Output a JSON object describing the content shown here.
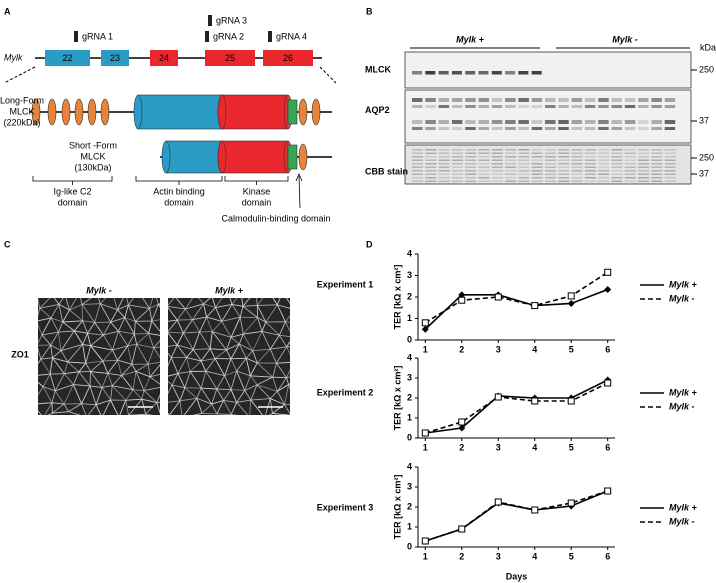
{
  "panel_a": {
    "label": "A",
    "gene": "Mylk",
    "exons": [
      "22",
      "23",
      "24",
      "25",
      "26"
    ],
    "grnas": [
      "gRNA 1",
      "gRNA 2",
      "gRNA 3",
      "gRNA 4"
    ],
    "long_form": [
      "Long-Form",
      "MLCK",
      "(220kDa)"
    ],
    "short_form": [
      "Short -Form",
      "MLCK",
      "(130kDa)"
    ],
    "domains": [
      [
        "Ig-like C2",
        "domain"
      ],
      [
        "Actin binding",
        "domain"
      ],
      [
        "Kinase",
        "domain"
      ]
    ],
    "calmodulin": "Calmodulin-binding domain"
  },
  "panel_b": {
    "label": "B",
    "groups": [
      "Mylk +",
      "Mylk -"
    ],
    "unit": "kDa",
    "rows": [
      {
        "name": "MLCK",
        "markers": [
          "250"
        ]
      },
      {
        "name": "AQP2",
        "markers": [
          "37"
        ]
      },
      {
        "name": "CBB stain",
        "markers": [
          "250",
          "37"
        ]
      }
    ]
  },
  "panel_c": {
    "label": "C",
    "columns": [
      "Mylk -",
      "Mylk +"
    ],
    "row": "ZO1"
  },
  "panel_d": {
    "label": "D"
  },
  "chart_data": [
    {
      "type": "line",
      "title": "Experiment 1",
      "y_label": "TER [kΩ x cm²]",
      "x": [
        1,
        2,
        3,
        4,
        5,
        6
      ],
      "xlim": [
        0.8,
        6.2
      ],
      "xticks": [
        1,
        2,
        3,
        4,
        5,
        6
      ],
      "ylim": [
        0,
        4
      ],
      "yticks": [
        0,
        1,
        2,
        3,
        4
      ],
      "series": [
        {
          "name": "Mylk +",
          "color": "#000000",
          "dash": false,
          "marker": "diamond",
          "values": [
            0.5,
            2.1,
            2.1,
            1.6,
            1.7,
            2.35
          ]
        },
        {
          "name": "Mylk -",
          "color": "#000000",
          "dash": true,
          "marker": "square",
          "values": [
            0.8,
            1.85,
            2.0,
            1.6,
            2.05,
            3.15
          ]
        }
      ]
    },
    {
      "type": "line",
      "title": "Experiment 2",
      "y_label": "TER [kΩ x cm²]",
      "x": [
        1,
        2,
        3,
        4,
        5,
        6
      ],
      "xlim": [
        0.8,
        6.2
      ],
      "xticks": [
        1,
        2,
        3,
        4,
        5,
        6
      ],
      "ylim": [
        0,
        4
      ],
      "yticks": [
        0,
        1,
        2,
        3,
        4
      ],
      "series": [
        {
          "name": "Mylk +",
          "color": "#000000",
          "dash": false,
          "marker": "diamond",
          "values": [
            0.25,
            0.5,
            2.1,
            2.0,
            2.0,
            2.9
          ]
        },
        {
          "name": "Mylk -",
          "color": "#000000",
          "dash": true,
          "marker": "square",
          "values": [
            0.25,
            0.8,
            2.05,
            1.85,
            1.85,
            2.75
          ]
        }
      ]
    },
    {
      "type": "line",
      "title": "Experiment 3",
      "y_label": "TER [kΩ x cm²]",
      "x_label": "Days",
      "x": [
        1,
        2,
        3,
        4,
        5,
        6
      ],
      "xlim": [
        0.8,
        6.2
      ],
      "xticks": [
        1,
        2,
        3,
        4,
        5,
        6
      ],
      "ylim": [
        0,
        4
      ],
      "yticks": [
        0,
        1,
        2,
        3,
        4
      ],
      "series": [
        {
          "name": "Mylk +",
          "color": "#000000",
          "dash": false,
          "marker": "diamond",
          "values": [
            0.3,
            0.9,
            2.2,
            1.85,
            2.05,
            2.8
          ]
        },
        {
          "name": "Mylk -",
          "color": "#000000",
          "dash": true,
          "marker": "square",
          "values": [
            0.3,
            0.9,
            2.25,
            1.85,
            2.2,
            2.8
          ]
        }
      ]
    }
  ]
}
